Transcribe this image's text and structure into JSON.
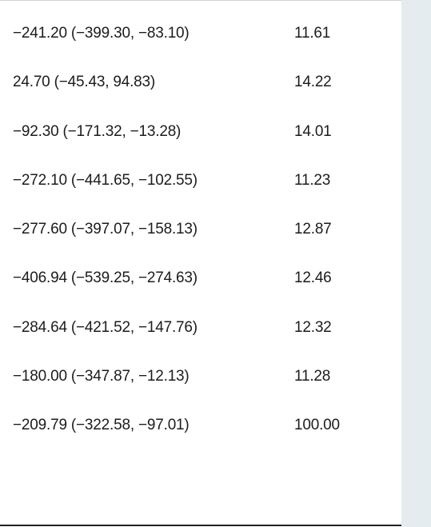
{
  "table": {
    "rows": [
      {
        "estimate": "−241.20 (−399.30, −83.10)",
        "weight": "11.61"
      },
      {
        "estimate": "24.70 (−45.43, 94.83)",
        "weight": "14.22"
      },
      {
        "estimate": "−92.30 (−171.32, −13.28)",
        "weight": "14.01"
      },
      {
        "estimate": "−272.10 (−441.65, −102.55)",
        "weight": "11.23"
      },
      {
        "estimate": "−277.60 (−397.07, −158.13)",
        "weight": "12.87"
      },
      {
        "estimate": "−406.94 (−539.25, −274.63)",
        "weight": "12.46"
      },
      {
        "estimate": "−284.64 (−421.52, −147.76)",
        "weight": "12.32"
      },
      {
        "estimate": "−180.00 (−347.87, −12.13)",
        "weight": "11.28"
      },
      {
        "estimate": "−209.79 (−322.58, −97.01)",
        "weight": "100.00"
      }
    ]
  },
  "colors": {
    "text": "#1c1c1c",
    "side_strip": "#e5ecef",
    "bottom_rule": "#222222"
  }
}
